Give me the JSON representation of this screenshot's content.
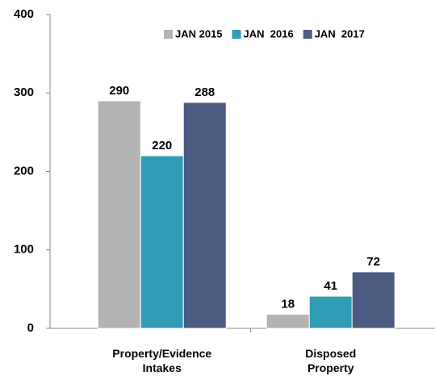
{
  "chart_data": {
    "type": "bar",
    "categories": [
      "Property/Evidence Intakes",
      "Disposed Property"
    ],
    "series": [
      {
        "name": "JAN 2015",
        "color": "#b3b3b3",
        "values": [
          290,
          18
        ]
      },
      {
        "name": "JAN  2016",
        "color": "#2f9db3",
        "values": [
          220,
          41
        ]
      },
      {
        "name": "JAN  2017",
        "color": "#4b5b82",
        "values": [
          288,
          72
        ]
      }
    ],
    "ylim": [
      0,
      400
    ],
    "yticks": [
      0,
      100,
      200,
      300,
      400
    ],
    "grid": false,
    "legend": "top-right"
  }
}
